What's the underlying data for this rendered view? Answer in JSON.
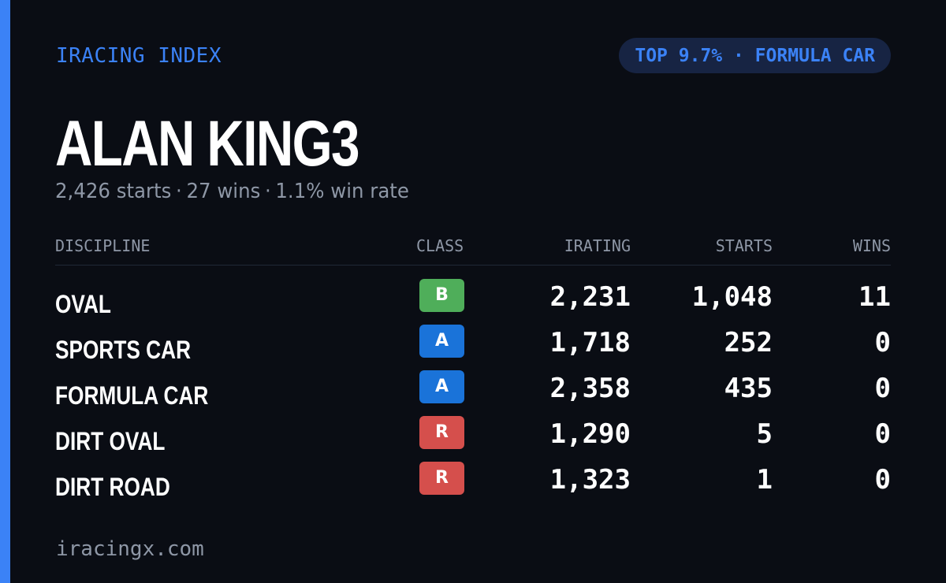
{
  "header": {
    "brand": "IRACING INDEX",
    "badge": "TOP 9.7% · FORMULA CAR"
  },
  "driver": {
    "name": "ALAN KING3",
    "starts": "2,426 starts",
    "wins": "27 wins",
    "win_rate": "1.1% win rate",
    "separator": "·"
  },
  "table": {
    "columns": {
      "discipline": "DISCIPLINE",
      "class": "CLASS",
      "irating": "IRATING",
      "starts": "STARTS",
      "wins": "WINS"
    },
    "rows": [
      {
        "discipline": "OVAL",
        "class": "B",
        "irating": "2,231",
        "starts": "1,048",
        "wins": "11"
      },
      {
        "discipline": "SPORTS CAR",
        "class": "A",
        "irating": "1,718",
        "starts": "252",
        "wins": "0"
      },
      {
        "discipline": "FORMULA CAR",
        "class": "A",
        "irating": "2,358",
        "starts": "435",
        "wins": "0"
      },
      {
        "discipline": "DIRT OVAL",
        "class": "R",
        "irating": "1,290",
        "starts": "5",
        "wins": "0"
      },
      {
        "discipline": "DIRT ROAD",
        "class": "R",
        "irating": "1,323",
        "starts": "1",
        "wins": "0"
      }
    ]
  },
  "class_colors": {
    "A": "#1a73d9",
    "B": "#4fae5a",
    "R": "#d54f4c"
  },
  "footer": {
    "site": "iracingx.com"
  },
  "colors": {
    "accent": "#3b82f6",
    "background": "#0a0d14",
    "muted": "#8e97a6",
    "badge_bg": "#172443"
  }
}
